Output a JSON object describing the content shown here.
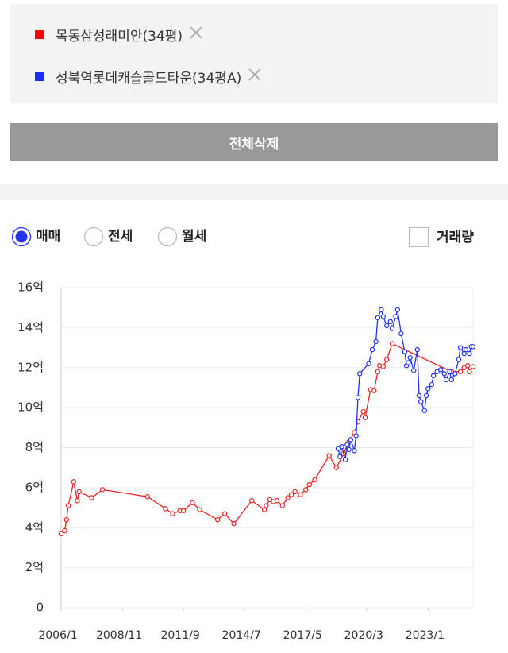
{
  "filters": [
    {
      "name": "목동삼성래미안(34평)",
      "color": "#ff0000"
    },
    {
      "name": "성북역롯데캐슬골드타운(34평A)",
      "color": "#1a2cff"
    }
  ],
  "clear_button": "전체삭제",
  "options": {
    "radios": [
      {
        "label": "매매",
        "selected": true
      },
      {
        "label": "전세",
        "selected": false
      },
      {
        "label": "월세",
        "selected": false
      }
    ],
    "checkbox": {
      "label": "거래량",
      "checked": false
    }
  },
  "chart_data": {
    "type": "line",
    "ylim": [
      0,
      16
    ],
    "yticks": [
      0,
      {
        "value": 2,
        "label": "2억"
      },
      {
        "value": 4,
        "label": "4억"
      },
      {
        "value": 6,
        "label": "6억"
      },
      {
        "value": 8,
        "label": "8억"
      },
      {
        "value": 10,
        "label": "10억"
      },
      {
        "value": 12,
        "label": "12억"
      },
      {
        "value": 14,
        "label": "14억"
      },
      {
        "value": 16,
        "label": "16억"
      }
    ],
    "xlim": [
      "2006/1",
      "2025/2"
    ],
    "xticks": [
      "2006/1",
      "2008/11",
      "2011/9",
      "2014/7",
      "2017/5",
      "2020/3",
      "2023/1"
    ],
    "grid": true,
    "series": [
      {
        "name": "목동삼성래미안(34평)",
        "color": "#ee2222",
        "x": [
          "2006/1",
          "2006/3",
          "2006/4",
          "2006/5",
          "2006/8",
          "2006/10",
          "2006/11",
          "2007/6",
          "2007/12",
          "2010/1",
          "2010/11",
          "2011/3",
          "2011/7",
          "2011/9",
          "2012/2",
          "2012/6",
          "2013/4",
          "2013/8",
          "2014/1",
          "2014/11",
          "2015/6",
          "2015/7",
          "2015/9",
          "2015/11",
          "2016/1",
          "2016/4",
          "2016/7",
          "2016/9",
          "2016/11",
          "2017/2",
          "2017/5",
          "2017/7",
          "2017/10",
          "2018/6",
          "2018/10",
          "2019/2",
          "2019/5",
          "2019/8",
          "2019/10",
          "2020/1",
          "2020/2",
          "2020/5",
          "2020/7",
          "2020/9",
          "2020/10",
          "2020/12",
          "2021/2",
          "2021/5",
          "2024/2",
          "2024/7",
          "2024/9",
          "2024/11",
          "2024/12",
          "2025/2"
        ],
        "values": [
          3.7,
          3.85,
          4.4,
          5.1,
          6.3,
          5.35,
          5.8,
          5.5,
          5.9,
          5.55,
          4.95,
          4.7,
          4.85,
          4.85,
          5.25,
          4.9,
          4.4,
          4.7,
          4.2,
          5.35,
          4.9,
          5.1,
          5.4,
          5.3,
          5.35,
          5.1,
          5.5,
          5.65,
          5.8,
          5.65,
          5.9,
          6.15,
          6.4,
          7.6,
          7.0,
          7.7,
          8.3,
          8.75,
          9.3,
          9.8,
          9.5,
          10.9,
          10.85,
          11.8,
          12.1,
          12.05,
          12.4,
          13.2,
          11.8,
          11.8,
          12.0,
          12.1,
          11.8,
          12.05
        ]
      },
      {
        "name": "성북역롯데캐슬골드타운(34평A)",
        "color": "#2233ee",
        "x": [
          "2018/11",
          "2018/12",
          "2019/1",
          "2019/3",
          "2019/4",
          "2019/5",
          "2019/6",
          "2019/8",
          "2019/9",
          "2019/10",
          "2019/11",
          "2020/4",
          "2020/6",
          "2020/8",
          "2020/9",
          "2020/11",
          "2020/12",
          "2021/2",
          "2021/4",
          "2021/5",
          "2021/7",
          "2021/8",
          "2021/10",
          "2021/12",
          "2022/1",
          "2022/2",
          "2022/3",
          "2022/5",
          "2022/7",
          "2022/8",
          "2022/9",
          "2022/11",
          "2022/12",
          "2023/1",
          "2023/3",
          "2023/4",
          "2023/6",
          "2023/8",
          "2023/10",
          "2023/11",
          "2024/1",
          "2024/2",
          "2024/4",
          "2024/6",
          "2024/7",
          "2024/9",
          "2024/10",
          "2024/12",
          "2025/1",
          "2025/2"
        ],
        "values": [
          7.95,
          7.55,
          8.05,
          7.4,
          8.15,
          7.9,
          8.4,
          7.85,
          8.6,
          10.5,
          11.7,
          12.2,
          12.9,
          13.3,
          14.5,
          14.9,
          14.55,
          14.1,
          14.3,
          13.95,
          14.55,
          14.9,
          13.7,
          12.8,
          12.1,
          12.25,
          12.5,
          11.85,
          12.9,
          10.6,
          10.3,
          9.85,
          10.6,
          10.95,
          11.15,
          11.6,
          11.8,
          11.9,
          11.7,
          11.4,
          11.8,
          11.4,
          11.7,
          12.4,
          13.0,
          12.7,
          12.9,
          12.7,
          13.05,
          13.05
        ]
      }
    ]
  }
}
